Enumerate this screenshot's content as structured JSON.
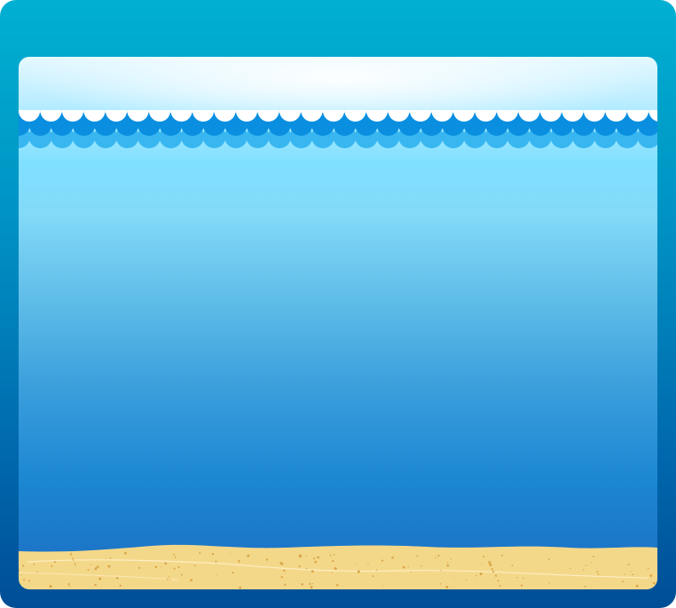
{
  "scene": {
    "name": "underwater-beach-background",
    "colors": {
      "frame_top": "#00b0d2",
      "frame_bottom": "#004e96",
      "water_top": "#80e0ff",
      "water_bottom": "#1e6dc2",
      "wave_dark": "#0a8fe0",
      "wave_light": "#38b6f0",
      "wave_foam": "#ffffff",
      "sand": "#f4d88a",
      "sand_shadow": "#e8c46a",
      "sand_speck": "#d9a84a"
    }
  }
}
